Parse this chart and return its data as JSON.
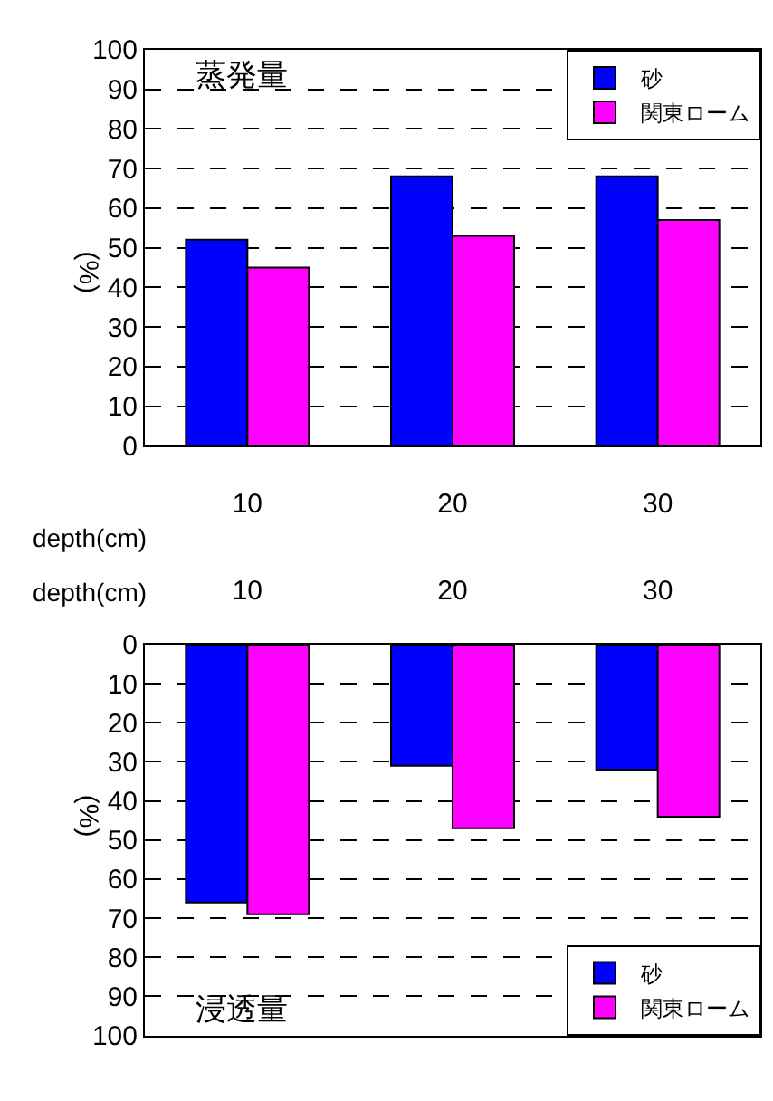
{
  "chart_data": [
    {
      "type": "bar",
      "title": "蒸発量",
      "xlabel": "depth(cm)",
      "ylabel": "(%)",
      "categories": [
        "10",
        "20",
        "30"
      ],
      "series": [
        {
          "name": "砂",
          "color": "#0000ff",
          "values": [
            52,
            68,
            68
          ]
        },
        {
          "name": "関東ローム",
          "color": "#ff00ff",
          "values": [
            45,
            53,
            57
          ]
        }
      ],
      "ylim": [
        0,
        100
      ],
      "yticks": [
        0,
        10,
        20,
        30,
        40,
        50,
        60,
        70,
        80,
        90,
        100
      ],
      "grid": "y",
      "legend": "top right"
    },
    {
      "type": "bar",
      "title": "浸透量",
      "xlabel": "depth(cm)",
      "ylabel": "(%)",
      "categories": [
        "10",
        "20",
        "30"
      ],
      "series": [
        {
          "name": "砂",
          "color": "#0000ff",
          "values": [
            66,
            31,
            32
          ]
        },
        {
          "name": "関東ローム",
          "color": "#ff00ff",
          "values": [
            69,
            47,
            44
          ]
        }
      ],
      "ylim": [
        100,
        0
      ],
      "yticks": [
        0,
        10,
        20,
        30,
        40,
        50,
        60,
        70,
        80,
        90,
        100
      ],
      "grid": "y",
      "legend": "bottom right"
    }
  ]
}
